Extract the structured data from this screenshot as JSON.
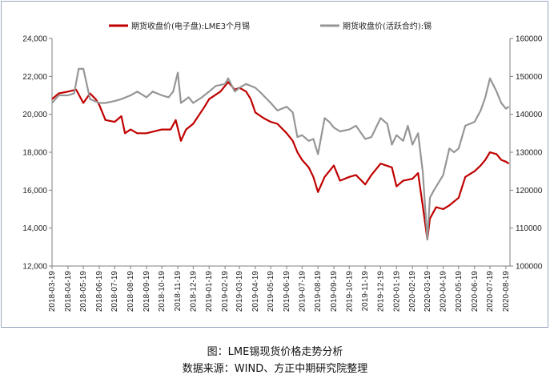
{
  "chart_data": {
    "type": "line",
    "title": "",
    "xlabel": "",
    "ylabel": "",
    "y_left": {
      "min": 12000,
      "max": 24000,
      "step": 2000,
      "tick_labels": [
        "12,000",
        "14,000",
        "16,000",
        "18,000",
        "20,000",
        "22,000",
        "24,000"
      ]
    },
    "y_right": {
      "min": 100000,
      "max": 160000,
      "step": 10000,
      "tick_labels": [
        "100000",
        "110000",
        "120000",
        "130000",
        "140000",
        "150000",
        "160000"
      ]
    },
    "x_tick_labels": [
      "2018-03-19",
      "2018-04-19",
      "2018-05-19",
      "2018-06-19",
      "2018-07-19",
      "2018-08-19",
      "2018-09-19",
      "2018-10-19",
      "2018-11-19",
      "2018-12-19",
      "2019-01-19",
      "2019-02-19",
      "2019-03-19",
      "2019-04-19",
      "2019-05-19",
      "2019-06-19",
      "2019-07-19",
      "2019-08-19",
      "2019-09-19",
      "2019-10-19",
      "2019-11-19",
      "2019-12-19",
      "2020-01-19",
      "2020-02-19",
      "2020-03-19",
      "2020-04-19",
      "2020-05-19",
      "2020-06-19",
      "2020-07-19",
      "2020-08-19"
    ],
    "legend_position": "top",
    "grid": false,
    "series": [
      {
        "name": "期货收盘价(电子盘):LME3个月锡",
        "axis": "left",
        "color": "#c00000",
        "points": [
          [
            "2018-03-19",
            20800
          ],
          [
            "2018-04-01",
            21100
          ],
          [
            "2018-04-19",
            21200
          ],
          [
            "2018-05-05",
            21300
          ],
          [
            "2018-05-19",
            20600
          ],
          [
            "2018-06-01",
            21100
          ],
          [
            "2018-06-12",
            20800
          ],
          [
            "2018-06-19",
            20500
          ],
          [
            "2018-07-01",
            19700
          ],
          [
            "2018-07-19",
            19600
          ],
          [
            "2018-08-01",
            19900
          ],
          [
            "2018-08-08",
            19000
          ],
          [
            "2018-08-19",
            19200
          ],
          [
            "2018-09-01",
            19000
          ],
          [
            "2018-09-19",
            19000
          ],
          [
            "2018-10-19",
            19200
          ],
          [
            "2018-11-05",
            19200
          ],
          [
            "2018-11-15",
            19700
          ],
          [
            "2018-11-25",
            18600
          ],
          [
            "2018-12-05",
            19200
          ],
          [
            "2018-12-19",
            19500
          ],
          [
            "2019-01-10",
            20400
          ],
          [
            "2019-01-19",
            20800
          ],
          [
            "2019-02-10",
            21200
          ],
          [
            "2019-02-19",
            21500
          ],
          [
            "2019-02-25",
            21700
          ],
          [
            "2019-03-10",
            21300
          ],
          [
            "2019-03-19",
            21400
          ],
          [
            "2019-04-01",
            21200
          ],
          [
            "2019-04-10",
            20800
          ],
          [
            "2019-04-19",
            20100
          ],
          [
            "2019-05-05",
            19800
          ],
          [
            "2019-05-19",
            19600
          ],
          [
            "2019-06-01",
            19500
          ],
          [
            "2019-06-19",
            19000
          ],
          [
            "2019-07-01",
            18600
          ],
          [
            "2019-07-10",
            18000
          ],
          [
            "2019-07-19",
            17600
          ],
          [
            "2019-08-01",
            17200
          ],
          [
            "2019-08-10",
            16700
          ],
          [
            "2019-08-19",
            15900
          ],
          [
            "2019-09-01",
            16700
          ],
          [
            "2019-09-19",
            17300
          ],
          [
            "2019-10-01",
            16500
          ],
          [
            "2019-10-19",
            16700
          ],
          [
            "2019-11-01",
            16800
          ],
          [
            "2019-11-19",
            16300
          ],
          [
            "2019-12-01",
            16800
          ],
          [
            "2019-12-19",
            17400
          ],
          [
            "2020-01-10",
            17200
          ],
          [
            "2020-01-19",
            16200
          ],
          [
            "2020-02-01",
            16500
          ],
          [
            "2020-02-19",
            16600
          ],
          [
            "2020-03-01",
            16900
          ],
          [
            "2020-03-10",
            15200
          ],
          [
            "2020-03-19",
            13400
          ],
          [
            "2020-03-24",
            14500
          ],
          [
            "2020-04-05",
            15100
          ],
          [
            "2020-04-19",
            15000
          ],
          [
            "2020-05-01",
            15200
          ],
          [
            "2020-05-19",
            15600
          ],
          [
            "2020-06-01",
            16700
          ],
          [
            "2020-06-19",
            17000
          ],
          [
            "2020-07-01",
            17300
          ],
          [
            "2020-07-10",
            17600
          ],
          [
            "2020-07-19",
            18000
          ],
          [
            "2020-08-01",
            17900
          ],
          [
            "2020-08-10",
            17600
          ],
          [
            "2020-08-19",
            17500
          ],
          [
            "2020-08-25",
            17400
          ]
        ]
      },
      {
        "name": "期货收盘价(活跃合约):锡",
        "axis": "right",
        "color": "#969696",
        "points": [
          [
            "2018-03-19",
            143000
          ],
          [
            "2018-04-01",
            145000
          ],
          [
            "2018-04-19",
            145000
          ],
          [
            "2018-05-01",
            145500
          ],
          [
            "2018-05-10",
            152000
          ],
          [
            "2018-05-19",
            152000
          ],
          [
            "2018-06-01",
            144000
          ],
          [
            "2018-06-19",
            143000
          ],
          [
            "2018-07-01",
            143000
          ],
          [
            "2018-07-19",
            143500
          ],
          [
            "2018-08-01",
            144000
          ],
          [
            "2018-08-19",
            145000
          ],
          [
            "2018-09-01",
            146000
          ],
          [
            "2018-09-19",
            144500
          ],
          [
            "2018-10-01",
            146000
          ],
          [
            "2018-10-19",
            145000
          ],
          [
            "2018-11-01",
            144500
          ],
          [
            "2018-11-10",
            146000
          ],
          [
            "2018-11-19",
            151000
          ],
          [
            "2018-11-25",
            143000
          ],
          [
            "2018-12-10",
            144500
          ],
          [
            "2018-12-19",
            143000
          ],
          [
            "2019-01-05",
            144500
          ],
          [
            "2019-01-19",
            146000
          ],
          [
            "2019-02-01",
            147500
          ],
          [
            "2019-02-19",
            148000
          ],
          [
            "2019-02-25",
            149500
          ],
          [
            "2019-03-10",
            146000
          ],
          [
            "2019-03-19",
            147000
          ],
          [
            "2019-04-01",
            148000
          ],
          [
            "2019-04-19",
            147000
          ],
          [
            "2019-05-01",
            145500
          ],
          [
            "2019-05-19",
            143000
          ],
          [
            "2019-06-01",
            141000
          ],
          [
            "2019-06-19",
            142000
          ],
          [
            "2019-07-01",
            140500
          ],
          [
            "2019-07-10",
            134000
          ],
          [
            "2019-07-19",
            134500
          ],
          [
            "2019-08-01",
            133000
          ],
          [
            "2019-08-10",
            133500
          ],
          [
            "2019-08-19",
            129500
          ],
          [
            "2019-09-01",
            139000
          ],
          [
            "2019-09-10",
            138000
          ],
          [
            "2019-09-19",
            136500
          ],
          [
            "2019-10-01",
            135500
          ],
          [
            "2019-10-19",
            136000
          ],
          [
            "2019-11-01",
            137000
          ],
          [
            "2019-11-19",
            133500
          ],
          [
            "2019-12-01",
            134000
          ],
          [
            "2019-12-19",
            139000
          ],
          [
            "2020-01-01",
            137500
          ],
          [
            "2020-01-10",
            132000
          ],
          [
            "2020-01-19",
            134500
          ],
          [
            "2020-02-01",
            133000
          ],
          [
            "2020-02-10",
            137000
          ],
          [
            "2020-02-19",
            132000
          ],
          [
            "2020-03-01",
            135000
          ],
          [
            "2020-03-10",
            125000
          ],
          [
            "2020-03-19",
            107000
          ],
          [
            "2020-03-24",
            118000
          ],
          [
            "2020-04-01",
            120000
          ],
          [
            "2020-04-19",
            124000
          ],
          [
            "2020-05-01",
            131000
          ],
          [
            "2020-05-10",
            130000
          ],
          [
            "2020-05-19",
            131000
          ],
          [
            "2020-06-01",
            137000
          ],
          [
            "2020-06-19",
            138000
          ],
          [
            "2020-07-01",
            141000
          ],
          [
            "2020-07-10",
            144500
          ],
          [
            "2020-07-19",
            149500
          ],
          [
            "2020-08-01",
            146000
          ],
          [
            "2020-08-10",
            143000
          ],
          [
            "2020-08-19",
            141500
          ],
          [
            "2020-08-25",
            142000
          ]
        ]
      }
    ]
  },
  "caption": {
    "title": "图：LME锡现货价格走势分析",
    "source": "数据来源：WIND、方正中期研究院整理"
  }
}
